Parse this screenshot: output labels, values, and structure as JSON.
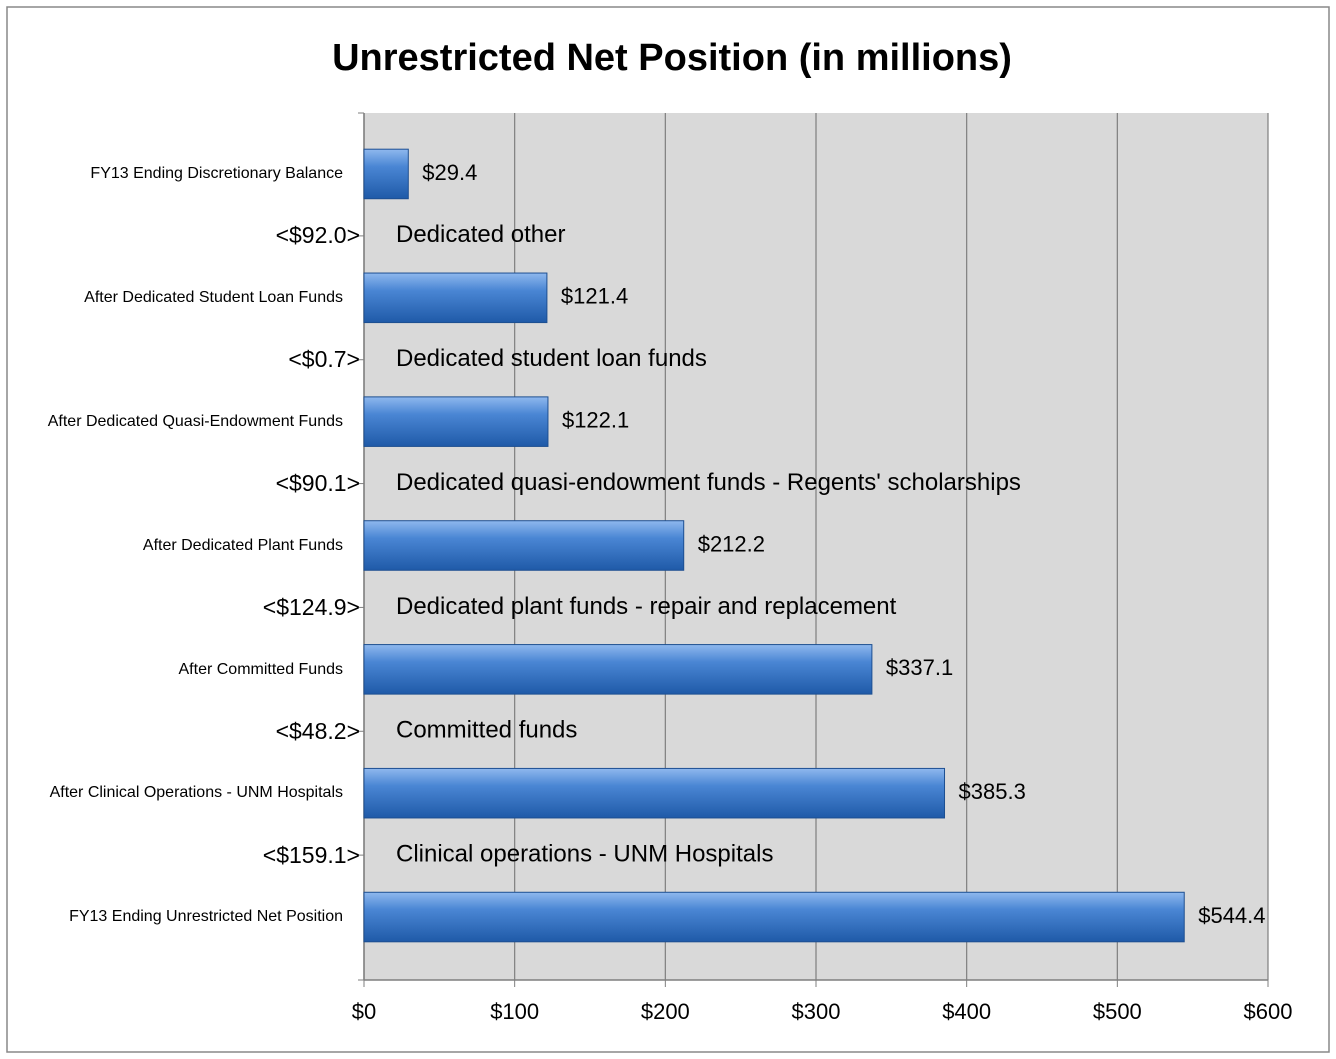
{
  "chart_data": {
    "type": "barh",
    "title": "Unrestricted Net Position (in millions)",
    "categories": [
      "FY13 Ending Discretionary Balance",
      "<$92.0>",
      "After Dedicated Student Loan Funds",
      "<$0.7>",
      "After Dedicated Quasi-Endowment Funds",
      "<$90.1>",
      "After Dedicated Plant Funds",
      "<$124.9>",
      "After Committed Funds",
      "<$48.2>",
      "After Clinical Operations - UNM Hospitals",
      "<$159.1>",
      "FY13 Ending Unrestricted Net Position"
    ],
    "values": [
      29.4,
      null,
      121.4,
      null,
      122.1,
      null,
      212.2,
      null,
      337.1,
      null,
      385.3,
      null,
      544.4
    ],
    "value_labels": [
      "$29.4",
      null,
      "$121.4",
      null,
      "$122.1",
      null,
      "$212.2",
      null,
      "$337.1",
      null,
      "$385.3",
      null,
      "$544.4"
    ],
    "annotations": [
      null,
      "Dedicated other",
      null,
      "Dedicated student loan funds",
      null,
      "Dedicated quasi-endowment funds - Regents' scholarships",
      null,
      "Dedicated plant funds - repair and replacement",
      null,
      "Committed funds",
      null,
      "Clinical operations - UNM Hospitals",
      null
    ],
    "color": "#3f7fcf",
    "xlim": [
      0,
      600
    ],
    "xticks": [
      {
        "value": 0,
        "label": "$0"
      },
      {
        "value": 100,
        "label": "$100"
      },
      {
        "value": 200,
        "label": "$200"
      },
      {
        "value": 300,
        "label": "$300"
      },
      {
        "value": 400,
        "label": "$400"
      },
      {
        "value": 500,
        "label": "$500"
      },
      {
        "value": 600,
        "label": "$600"
      }
    ],
    "grid": true
  }
}
